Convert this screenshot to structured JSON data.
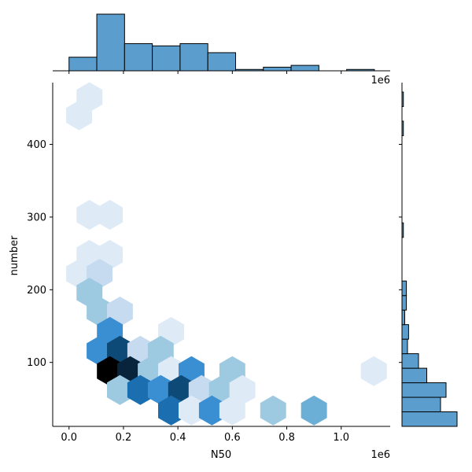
{
  "chart_data": {
    "type": "hexbin-jointplot",
    "xlabel": "N50",
    "ylabel": "number",
    "x_offset_text": "1e6",
    "marg_x_offset_text": "1e6",
    "xlim": [
      -0.06,
      1.18
    ],
    "ylim": [
      12,
      485
    ],
    "x_ticks": [
      0.0,
      0.2,
      0.4,
      0.6,
      0.8,
      1.0
    ],
    "x_tick_labels": [
      "0.0",
      "0.2",
      "0.4",
      "0.6",
      "0.8",
      "1.0"
    ],
    "y_ticks": [
      100,
      200,
      300,
      400
    ],
    "y_tick_labels": [
      "100",
      "200",
      "300",
      "400"
    ],
    "colors": {
      "hist": "#5b9ecd",
      "edge": "#000000",
      "hex_scale": [
        "#deebf7",
        "#c6dbef",
        "#9ecae1",
        "#6baed6",
        "#3a8fd3",
        "#1b6fb0",
        "#0e4a78",
        "#08243d",
        "#000000"
      ]
    },
    "hexbin": {
      "note_levels": "count level 1..9 (light to black)",
      "cells": [
        {
          "x": 0.075,
          "y": 465,
          "level": 1
        },
        {
          "x": 0.037,
          "y": 440,
          "level": 1
        },
        {
          "x": 0.075,
          "y": 303,
          "level": 1
        },
        {
          "x": 0.15,
          "y": 303,
          "level": 1
        },
        {
          "x": 0.075,
          "y": 248,
          "level": 1
        },
        {
          "x": 0.15,
          "y": 248,
          "level": 1
        },
        {
          "x": 0.037,
          "y": 222,
          "level": 1
        },
        {
          "x": 0.112,
          "y": 222,
          "level": 2
        },
        {
          "x": 0.075,
          "y": 196,
          "level": 3
        },
        {
          "x": 0.112,
          "y": 170,
          "level": 3
        },
        {
          "x": 0.187,
          "y": 170,
          "level": 2
        },
        {
          "x": 0.15,
          "y": 142,
          "level": 5
        },
        {
          "x": 0.375,
          "y": 142,
          "level": 1
        },
        {
          "x": 0.112,
          "y": 116,
          "level": 5
        },
        {
          "x": 0.187,
          "y": 116,
          "level": 7
        },
        {
          "x": 0.262,
          "y": 116,
          "level": 2
        },
        {
          "x": 0.337,
          "y": 116,
          "level": 3
        },
        {
          "x": 0.15,
          "y": 88,
          "level": 9
        },
        {
          "x": 0.225,
          "y": 88,
          "level": 8
        },
        {
          "x": 0.3,
          "y": 88,
          "level": 3
        },
        {
          "x": 0.375,
          "y": 88,
          "level": 1
        },
        {
          "x": 0.45,
          "y": 88,
          "level": 5
        },
        {
          "x": 0.6,
          "y": 88,
          "level": 3
        },
        {
          "x": 1.12,
          "y": 88,
          "level": 1
        },
        {
          "x": 0.187,
          "y": 62,
          "level": 3
        },
        {
          "x": 0.262,
          "y": 62,
          "level": 6
        },
        {
          "x": 0.337,
          "y": 62,
          "level": 5
        },
        {
          "x": 0.412,
          "y": 62,
          "level": 7
        },
        {
          "x": 0.487,
          "y": 62,
          "level": 2
        },
        {
          "x": 0.562,
          "y": 62,
          "level": 3
        },
        {
          "x": 0.637,
          "y": 62,
          "level": 1
        },
        {
          "x": 0.375,
          "y": 34,
          "level": 6
        },
        {
          "x": 0.45,
          "y": 34,
          "level": 1
        },
        {
          "x": 0.525,
          "y": 34,
          "level": 5
        },
        {
          "x": 0.6,
          "y": 34,
          "level": 1
        },
        {
          "x": 0.75,
          "y": 34,
          "level": 3
        },
        {
          "x": 0.9,
          "y": 34,
          "level": 4
        }
      ]
    },
    "marginal_x": {
      "bin_edges": [
        0.0,
        0.102,
        0.204,
        0.306,
        0.408,
        0.51,
        0.612,
        0.714,
        0.816,
        0.918,
        1.02,
        1.122
      ],
      "counts": [
        6,
        25,
        12,
        11,
        12,
        8,
        0.6,
        1.6,
        2.4,
        0,
        0.6
      ]
    },
    "marginal_y": {
      "bin_edges": [
        12,
        32,
        52,
        72,
        92,
        112,
        132,
        152,
        172,
        192,
        212,
        232,
        252,
        272,
        292,
        312,
        332,
        352,
        372,
        392,
        412,
        432,
        452,
        472
      ],
      "counts": [
        20,
        14,
        16,
        9,
        6,
        2,
        2.4,
        1,
        1.6,
        1.6,
        0,
        0,
        0,
        0.5,
        0,
        0,
        0,
        0,
        0,
        0,
        0.5,
        0,
        0.5
      ]
    }
  }
}
